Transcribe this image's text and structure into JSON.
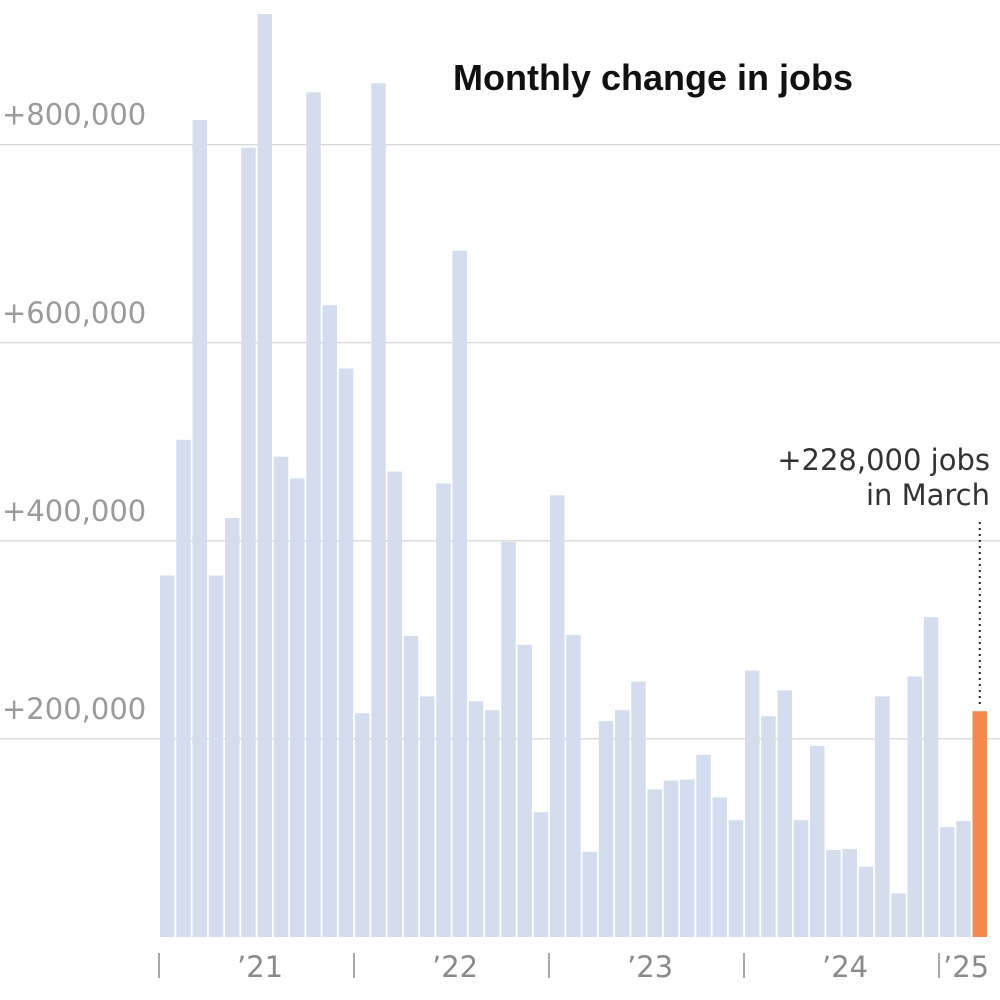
{
  "chart_data": {
    "type": "bar",
    "title": "Monthly change in jobs",
    "xlabel": "",
    "ylabel": "",
    "ylim": [
      0,
      930000
    ],
    "grid": true,
    "y_ticks": [
      {
        "value": 200000,
        "label": "+200,000"
      },
      {
        "value": 400000,
        "label": "+400,000"
      },
      {
        "value": 600000,
        "label": "+600,000"
      },
      {
        "value": 800000,
        "label": "+800,000"
      }
    ],
    "x_ticks": [
      {
        "index": 0,
        "label": "’21"
      },
      {
        "index": 12,
        "label": "’22"
      },
      {
        "index": 24,
        "label": "’23"
      },
      {
        "index": 36,
        "label": "’24"
      },
      {
        "index": 48,
        "label": "’25"
      }
    ],
    "base_color": "#d3dded",
    "highlight_color": "#f5894f",
    "highlight_index": 50,
    "values": [
      365000,
      502000,
      825000,
      365000,
      423000,
      797000,
      932000,
      485000,
      463000,
      853000,
      638000,
      574000,
      226000,
      862000,
      470000,
      304000,
      243000,
      458000,
      693000,
      238000,
      229000,
      399000,
      295000,
      126000,
      446000,
      305000,
      86000,
      218000,
      229000,
      258000,
      149000,
      158000,
      159000,
      184000,
      141000,
      118000,
      269000,
      223000,
      249000,
      118000,
      193000,
      88000,
      89000,
      71000,
      243000,
      44000,
      263000,
      323000,
      111000,
      117000,
      228000
    ],
    "annotation": {
      "line1": "+228,000 jobs",
      "line2": "in March"
    }
  }
}
